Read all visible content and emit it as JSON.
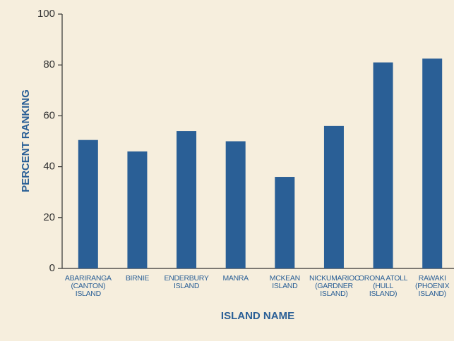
{
  "chart_data": {
    "type": "bar",
    "x_label": "ISLAND NAME",
    "y_label": "PERCENT RANKING",
    "categories": [
      "ABARIRANGA\n(CANTON)\nISLAND",
      "BIRNIE",
      "ENDERBURY\nISLAND",
      "MANRA",
      "MCKEAN\nISLAND",
      "NICKUMARIOO\n(GARDNER\nISLAND)",
      "ORONA ATOLL\n(HULL ISLAND)",
      "RAWAKI\n(PHOENIX\nISLAND)"
    ],
    "values": [
      50.5,
      46,
      54,
      50,
      36,
      56,
      81,
      82.5
    ],
    "color": "#2a5f96",
    "ylim": [
      0,
      100
    ],
    "yticks": [
      0,
      20,
      40,
      60,
      80,
      100
    ],
    "grid": false
  }
}
